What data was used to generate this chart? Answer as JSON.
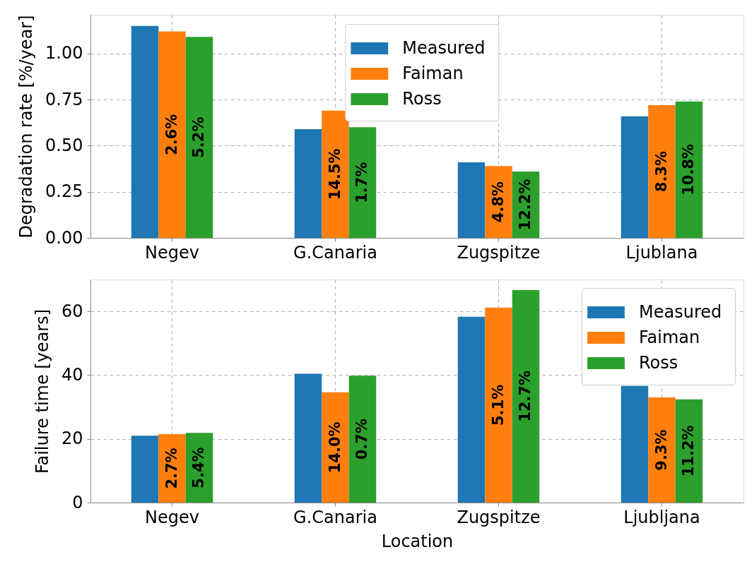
{
  "chart_data": [
    {
      "type": "bar",
      "ylabel": "Degradation rate [%/year]",
      "categories": [
        "Negev",
        "G.Canaria",
        "Zugspitze",
        "Ljublana"
      ],
      "series": [
        {
          "name": "Measured",
          "color": "#1f77b4",
          "values": [
            1.15,
            0.59,
            0.41,
            0.66
          ]
        },
        {
          "name": "Faiman",
          "color": "#ff7f0e",
          "values": [
            1.12,
            0.69,
            0.39,
            0.72
          ]
        },
        {
          "name": "Ross",
          "color": "#2ca02c",
          "values": [
            1.09,
            0.6,
            0.36,
            0.74
          ]
        }
      ],
      "annotations": [
        "2.6%",
        "5.2%",
        "14.5%",
        "1.7%",
        "4.8%",
        "12.2%",
        "8.3%",
        "10.8%"
      ],
      "ylim": [
        0,
        1.21
      ],
      "yticks": [
        {
          "value": 0,
          "label": "0.00"
        },
        0.25,
        {
          "value": 0.5,
          "label": "0.50"
        },
        0.75,
        {
          "value": 1,
          "label": "1.00"
        }
      ],
      "grid": true,
      "legend": "top"
    },
    {
      "type": "bar",
      "xlabel": "Location",
      "ylabel": "Failure time [years]",
      "categories": [
        "Negev",
        "G.Canaria",
        "Zugspitze",
        "Ljubljana"
      ],
      "series": [
        {
          "name": "Measured",
          "color": "#1f77b4",
          "values": [
            21.0,
            40.4,
            58.3,
            36.6
          ]
        },
        {
          "name": "Faiman",
          "color": "#ff7f0e",
          "values": [
            21.5,
            34.6,
            61.2,
            33.0
          ]
        },
        {
          "name": "Ross",
          "color": "#2ca02c",
          "values": [
            21.9,
            39.8,
            66.7,
            32.4
          ]
        }
      ],
      "annotations": [
        "2.7%",
        "5.4%",
        "14.0%",
        "0.7%",
        "5.1%",
        "12.7%",
        "9.3%",
        "11.2%"
      ],
      "ylim": [
        0,
        70
      ],
      "yticks": [
        0,
        20,
        40,
        60
      ],
      "grid": true,
      "legend": "top right"
    }
  ]
}
